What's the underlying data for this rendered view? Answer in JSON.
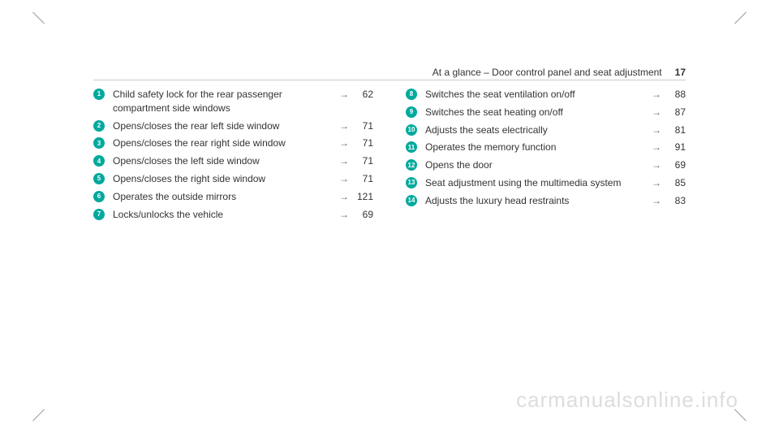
{
  "header": {
    "title": "At a glance – Door control panel and seat adjustment",
    "page_number": "17"
  },
  "left_column": [
    {
      "num": "1",
      "text": "Child safety lock for the rear passenger compartment side windows",
      "page": "62"
    },
    {
      "num": "2",
      "text": "Opens/closes the rear left side window",
      "page": "71"
    },
    {
      "num": "3",
      "text": "Opens/closes the rear right side window",
      "page": "71"
    },
    {
      "num": "4",
      "text": "Opens/closes the left side window",
      "page": "71"
    },
    {
      "num": "5",
      "text": "Opens/closes the right side window",
      "page": "71"
    },
    {
      "num": "6",
      "text": "Operates the outside mirrors",
      "page": "121"
    },
    {
      "num": "7",
      "text": "Locks/unlocks the vehicle",
      "page": "69"
    }
  ],
  "right_column": [
    {
      "num": "8",
      "text": "Switches the seat ventilation on/off",
      "page": "88"
    },
    {
      "num": "9",
      "text": "Switches the seat heating on/off",
      "page": "87"
    },
    {
      "num": "10",
      "text": "Adjusts the seats electrically",
      "page": "81"
    },
    {
      "num": "11",
      "text": "Operates the memory function",
      "page": "91"
    },
    {
      "num": "12",
      "text": "Opens the door",
      "page": "69"
    },
    {
      "num": "13",
      "text": "Seat adjustment using the multimedia system",
      "page": "85"
    },
    {
      "num": "14",
      "text": "Adjusts the luxury head restraints",
      "page": "83"
    }
  ],
  "watermark": "carmanualsonline.info",
  "colors": {
    "badge_bg": "#00a99d",
    "text": "#333333",
    "watermark": "#dddddd"
  }
}
